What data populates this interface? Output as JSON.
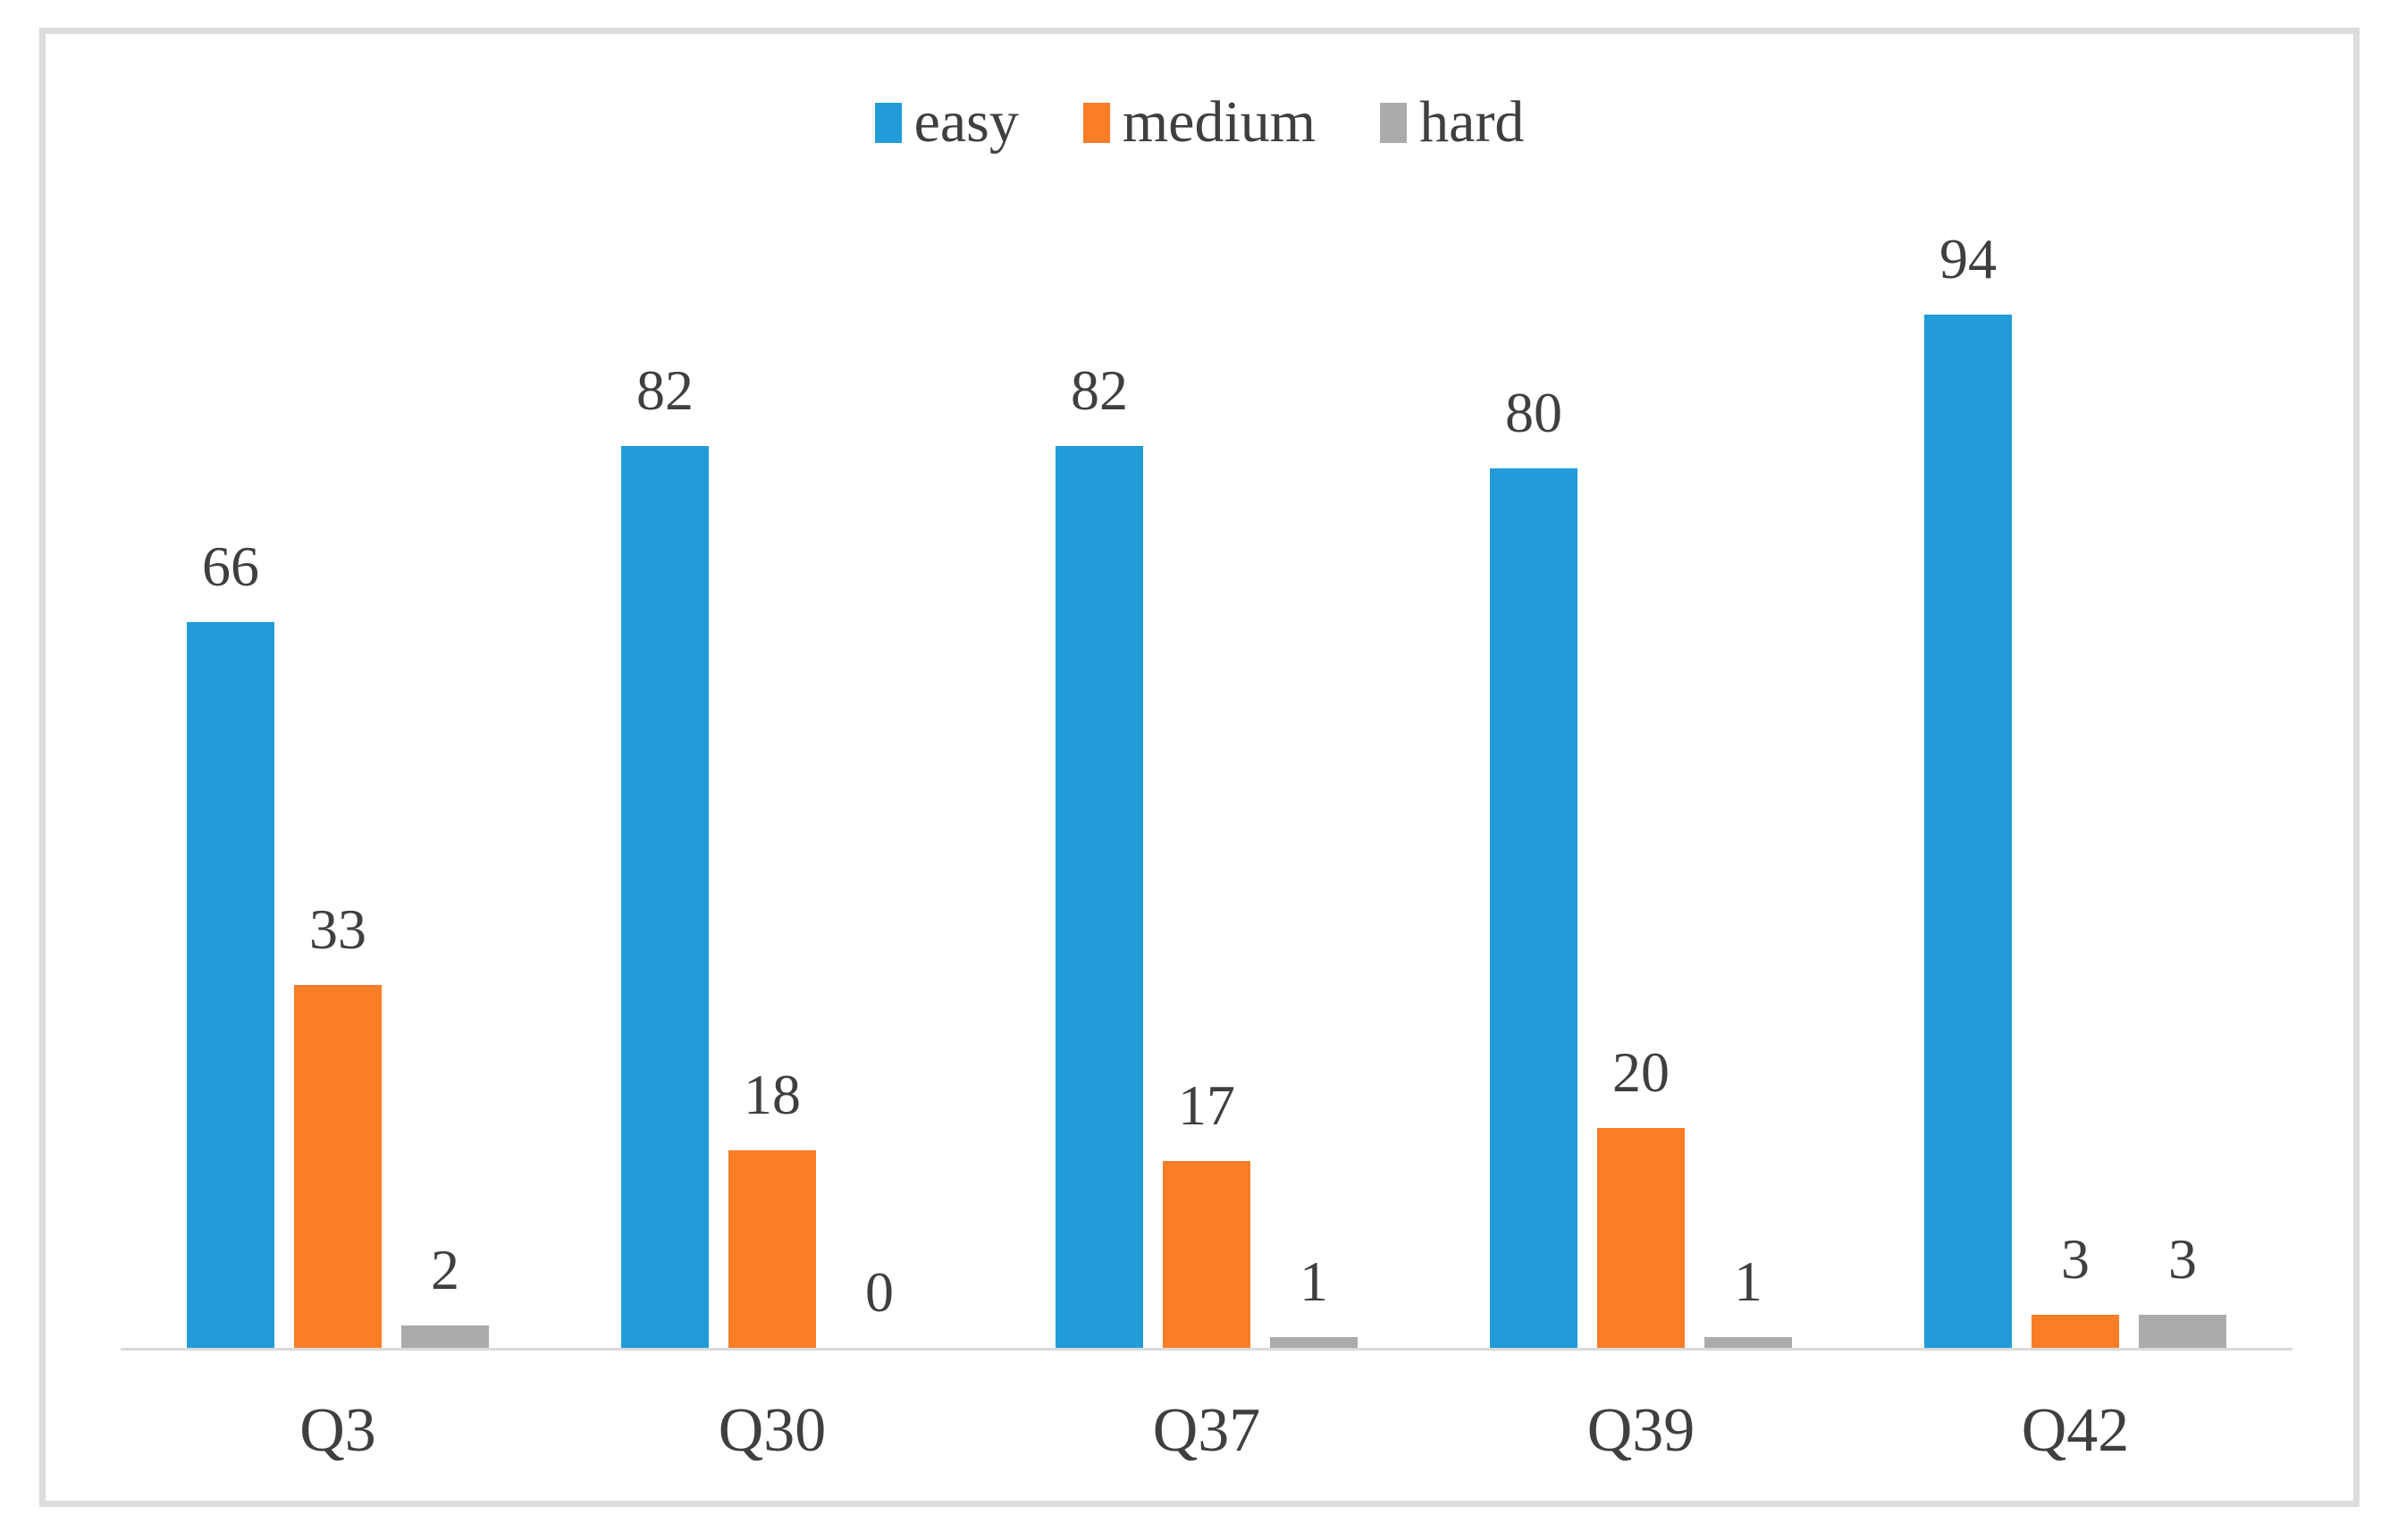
{
  "chart_data": {
    "type": "bar",
    "categories": [
      "Q3",
      "Q30",
      "Q37",
      "Q39",
      "Q42"
    ],
    "series": [
      {
        "name": "easy",
        "color": "#219CD9",
        "values": [
          66,
          82,
          82,
          80,
          94
        ]
      },
      {
        "name": "medium",
        "color": "#FB7D26",
        "values": [
          33,
          18,
          17,
          20,
          3
        ]
      },
      {
        "name": "hard",
        "color": "#ABABAB",
        "values": [
          2,
          0,
          1,
          1,
          3
        ]
      }
    ],
    "ylim": [
      0,
      100
    ],
    "grid": false,
    "legend_position": "top",
    "data_labels": true
  },
  "colors": {
    "axis_line": "#D9D9D9",
    "frame_border": "#DCDCDC",
    "label_text": "#3F3F3F"
  }
}
